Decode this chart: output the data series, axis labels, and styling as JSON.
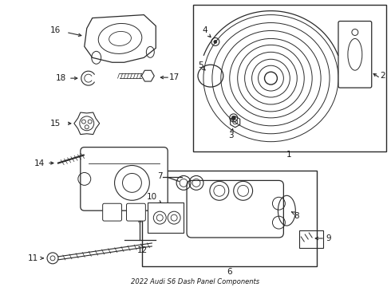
{
  "title": "2022 Audi S6 Dash Panel Components",
  "bg_color": "#ffffff",
  "line_color": "#2a2a2a",
  "text_color": "#1a1a1a",
  "figsize": [
    4.9,
    3.6
  ],
  "dpi": 100
}
